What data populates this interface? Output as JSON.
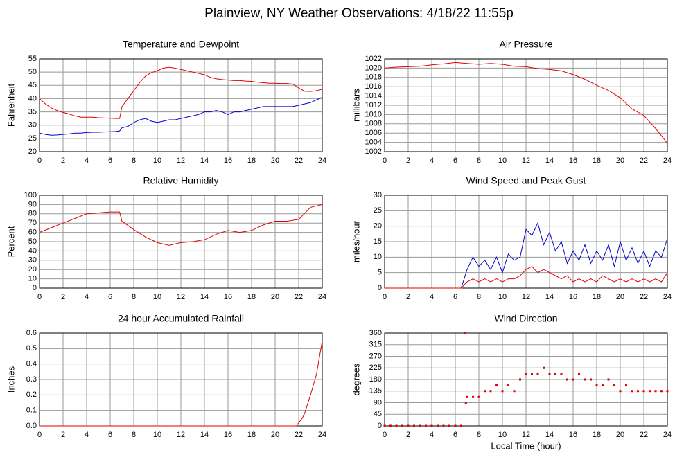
{
  "title": "Plainview, NY Weather Observations: 4/18/22 11:55p",
  "chart_data": [
    {
      "type": "line",
      "title": "Temperature and Dewpoint",
      "ylabel": "Fahrenheit",
      "x": [
        0,
        0.5,
        1,
        1.5,
        2,
        2.5,
        3,
        3.5,
        4,
        4.5,
        5,
        5.5,
        6,
        6.5,
        6.8,
        7,
        7.5,
        8,
        8.5,
        9,
        9.5,
        10,
        10.5,
        11,
        11.5,
        12,
        12.5,
        13,
        13.5,
        14,
        14.5,
        15,
        15.5,
        16,
        16.5,
        17,
        17.5,
        18,
        18.5,
        19,
        19.5,
        20,
        20.5,
        21,
        21.5,
        22,
        22.5,
        23,
        23.5,
        24
      ],
      "series": [
        {
          "name": "Temperature",
          "color": "#e00000",
          "values": [
            40,
            38,
            36.5,
            35.5,
            34.8,
            34.2,
            33.5,
            33,
            33,
            33,
            32.8,
            32.7,
            32.6,
            32.5,
            32.5,
            37,
            40,
            43,
            46,
            48.5,
            49.8,
            50.5,
            51.5,
            51.8,
            51.5,
            51,
            50.5,
            50,
            49.5,
            49,
            48,
            47.5,
            47.2,
            47,
            46.8,
            46.8,
            46.6,
            46.5,
            46.2,
            46,
            45.8,
            45.8,
            45.7,
            45.7,
            45.5,
            44,
            42.8,
            42.7,
            43,
            43.5
          ]
        },
        {
          "name": "Dewpoint",
          "color": "#0000cc",
          "values": [
            27,
            26.5,
            26.2,
            26.3,
            26.5,
            26.7,
            27,
            27,
            27.2,
            27.3,
            27.3,
            27.4,
            27.5,
            27.6,
            27.8,
            29,
            29.5,
            31,
            32,
            32.5,
            31.5,
            31,
            31.5,
            32,
            32,
            32.5,
            33,
            33.5,
            34,
            35,
            35,
            35.5,
            35,
            34,
            35,
            35,
            35.5,
            36,
            36.5,
            37,
            37,
            37,
            37,
            37,
            37,
            37.5,
            38,
            38.5,
            39.5,
            40.5
          ]
        }
      ],
      "xlim": [
        0,
        24
      ],
      "xticks": [
        0,
        2,
        4,
        6,
        8,
        10,
        12,
        14,
        16,
        18,
        20,
        22,
        24
      ],
      "ylim": [
        20,
        55
      ],
      "yticks": [
        20,
        25,
        30,
        35,
        40,
        45,
        50,
        55
      ],
      "grid": true
    },
    {
      "type": "line",
      "title": "Air Pressure",
      "ylabel": "millibars",
      "x": [
        0,
        1,
        2,
        3,
        4,
        5,
        6,
        7,
        8,
        9,
        10,
        11,
        12,
        13,
        14,
        15,
        16,
        17,
        18,
        19,
        20,
        21,
        22,
        23,
        24
      ],
      "series": [
        {
          "name": "Pressure",
          "color": "#e00000",
          "values": [
            1020,
            1020.2,
            1020.3,
            1020.4,
            1020.7,
            1020.9,
            1021.2,
            1021,
            1020.8,
            1021,
            1020.8,
            1020.4,
            1020.3,
            1019.9,
            1019.7,
            1019.4,
            1018.6,
            1017.6,
            1016.3,
            1015.2,
            1013.6,
            1011.2,
            1009.8,
            1007,
            1003.8
          ]
        }
      ],
      "xlim": [
        0,
        24
      ],
      "xticks": [
        0,
        2,
        4,
        6,
        8,
        10,
        12,
        14,
        16,
        18,
        20,
        22,
        24
      ],
      "ylim": [
        1002,
        1022
      ],
      "yticks": [
        1002,
        1004,
        1006,
        1008,
        1010,
        1012,
        1014,
        1016,
        1018,
        1020,
        1022
      ],
      "grid": true
    },
    {
      "type": "line",
      "title": "Relative Humidity",
      "ylabel": "Percent",
      "x": [
        0,
        1,
        2,
        3,
        4,
        5,
        6,
        6.8,
        7,
        8,
        9,
        10,
        11,
        12,
        13,
        14,
        15,
        16,
        17,
        18,
        19,
        20,
        21,
        22,
        23,
        24
      ],
      "series": [
        {
          "name": "Humidity",
          "color": "#e00000",
          "values": [
            60,
            65,
            70,
            75,
            80,
            81,
            82,
            82,
            72,
            63,
            55,
            49,
            46,
            49,
            50,
            52,
            58,
            62,
            60,
            62,
            68,
            72,
            72,
            74,
            87,
            90
          ]
        }
      ],
      "xlim": [
        0,
        24
      ],
      "xticks": [
        0,
        2,
        4,
        6,
        8,
        10,
        12,
        14,
        16,
        18,
        20,
        22,
        24
      ],
      "ylim": [
        0,
        100
      ],
      "yticks": [
        0,
        10,
        20,
        30,
        40,
        50,
        60,
        70,
        80,
        90,
        100
      ],
      "grid": true
    },
    {
      "type": "line",
      "title": "Wind Speed and Peak Gust",
      "ylabel": "miles/hour",
      "x": [
        0,
        0.5,
        1,
        1.5,
        2,
        2.5,
        3,
        3.5,
        4,
        4.5,
        5,
        5.5,
        6,
        6.5,
        7,
        7.5,
        8,
        8.5,
        9,
        9.5,
        10,
        10.5,
        11,
        11.5,
        12,
        12.5,
        13,
        13.5,
        14,
        14.5,
        15,
        15.5,
        16,
        16.5,
        17,
        17.5,
        18,
        18.5,
        19,
        19.5,
        20,
        20.5,
        21,
        21.5,
        22,
        22.5,
        23,
        23.5,
        24
      ],
      "series": [
        {
          "name": "Peak Gust",
          "color": "#0000cc",
          "values": [
            0,
            0,
            0,
            0,
            0,
            0,
            0,
            0,
            0,
            0,
            0,
            0,
            0,
            0,
            6,
            10,
            7,
            9,
            6,
            10,
            5,
            11,
            9,
            10,
            19,
            17,
            21,
            14,
            18,
            12,
            15,
            8,
            12,
            9,
            14,
            8,
            12,
            9,
            14,
            7,
            15,
            9,
            13,
            8,
            12,
            7,
            12,
            10,
            16
          ]
        },
        {
          "name": "Wind Speed",
          "color": "#e00000",
          "values": [
            0,
            0,
            0,
            0,
            0,
            0,
            0,
            0,
            0,
            0,
            0,
            0,
            0,
            0,
            2,
            3,
            2,
            3,
            2,
            3,
            2,
            3,
            3,
            4,
            6,
            7,
            5,
            6,
            5,
            4,
            3,
            4,
            2,
            3,
            2,
            3,
            2,
            4,
            3,
            2,
            3,
            2,
            3,
            2,
            3,
            2,
            3,
            2,
            5
          ]
        }
      ],
      "xlim": [
        0,
        24
      ],
      "xticks": [
        0,
        2,
        4,
        6,
        8,
        10,
        12,
        14,
        16,
        18,
        20,
        22,
        24
      ],
      "ylim": [
        0,
        30
      ],
      "yticks": [
        0,
        5,
        10,
        15,
        20,
        25,
        30
      ],
      "grid": true
    },
    {
      "type": "line",
      "title": "24 hour Accumulated Rainfall",
      "ylabel": "Inches",
      "x": [
        0,
        21.8,
        22.3,
        22.5,
        23,
        23.5,
        24
      ],
      "series": [
        {
          "name": "Rainfall",
          "color": "#e00000",
          "values": [
            0,
            0,
            0.05,
            0.08,
            0.2,
            0.33,
            0.55
          ]
        }
      ],
      "xlim": [
        0,
        24
      ],
      "xticks": [
        0,
        2,
        4,
        6,
        8,
        10,
        12,
        14,
        16,
        18,
        20,
        22,
        24
      ],
      "ylim": [
        0,
        0.6
      ],
      "yticks": [
        {
          "value": 0,
          "label": "0.0"
        },
        0.1,
        0.2,
        0.3,
        0.4,
        0.5,
        0.6
      ],
      "grid": true
    },
    {
      "type": "scatter",
      "title": "Wind Direction",
      "ylabel": "degrees",
      "xlabel": "Local Time (hour)",
      "x": [
        0,
        0.5,
        1,
        1.5,
        2,
        2.5,
        3,
        3.5,
        4,
        4.5,
        5,
        5.5,
        6,
        6.5,
        6.8,
        6.9,
        7,
        7.5,
        8,
        8.5,
        9,
        9.5,
        10,
        10.5,
        11,
        11.5,
        12,
        12.5,
        13,
        13.5,
        14,
        14.5,
        15,
        15.5,
        16,
        16.5,
        17,
        17.5,
        18,
        18.5,
        19,
        19.5,
        20,
        20.5,
        21,
        21.5,
        22,
        22.5,
        23,
        23.5,
        24
      ],
      "series": [
        {
          "name": "Direction",
          "color": "#e00000",
          "values": [
            0,
            0,
            0,
            0,
            0,
            0,
            0,
            0,
            0,
            0,
            0,
            0,
            0,
            0,
            360,
            90,
            112,
            112,
            112,
            135,
            135,
            157,
            135,
            157,
            135,
            180,
            202,
            202,
            202,
            225,
            202,
            202,
            202,
            180,
            180,
            202,
            180,
            180,
            157,
            157,
            180,
            157,
            135,
            157,
            135,
            135,
            135,
            135,
            135,
            135,
            135
          ]
        }
      ],
      "xlim": [
        0,
        24
      ],
      "xticks": [
        0,
        2,
        4,
        6,
        8,
        10,
        12,
        14,
        16,
        18,
        20,
        22,
        24
      ],
      "ylim": [
        0,
        360
      ],
      "yticks": [
        0,
        45,
        90,
        135,
        180,
        225,
        270,
        315,
        360
      ],
      "grid": true
    }
  ]
}
